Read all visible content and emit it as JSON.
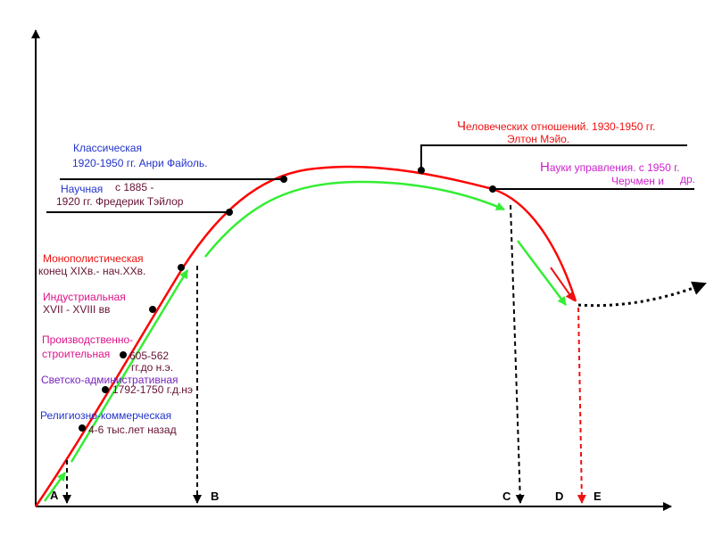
{
  "colors": {
    "curve": "#ff0000",
    "arrow": "#33ee33",
    "blue": "#2233cc",
    "red": "#ee1111",
    "maroon": "#661133",
    "pink": "#dd1188",
    "magenta": "#cc22cc",
    "violet": "#7722bb"
  },
  "points": {
    "A": "A",
    "B": "B",
    "C": "C",
    "D": "D",
    "E": "E"
  },
  "stages": {
    "religious": {
      "title": "Религиозно-коммерческая",
      "date": "4-6 тыс.лет назад"
    },
    "secular": {
      "title": "Светско-административная",
      "date": "1792-1750 г.д.нэ"
    },
    "production": {
      "title_line1": "Производственно-",
      "title_line2": "строительная",
      "date_line1": "605-562",
      "date_line2": "гг.до н.э."
    },
    "industrial": {
      "title": "Индустриальная",
      "date": "XVII - XVIII вв"
    },
    "monopolistic": {
      "title": "Монополистическая",
      "date": "конец XIXв.- нач.XXв."
    }
  },
  "schools": {
    "scientific": {
      "name": "Научная",
      "line1_date": "с 1885 -",
      "line2": "1920 гг. Фредерик Тэйлор"
    },
    "classical": {
      "line1": "Классическая",
      "line2": "1920-1950 гг. Анри Файоль."
    },
    "human_relations": {
      "initial": "Ч",
      "line1_rest": "еловеческих отношений. 1930-1950 гг.",
      "line2": "Элтон Мэйо."
    },
    "management_science": {
      "initial": "Н",
      "line1_rest": "ауки управления. с 1950 г.",
      "line2_a": "Черчмен и",
      "line2_b": "др."
    }
  }
}
